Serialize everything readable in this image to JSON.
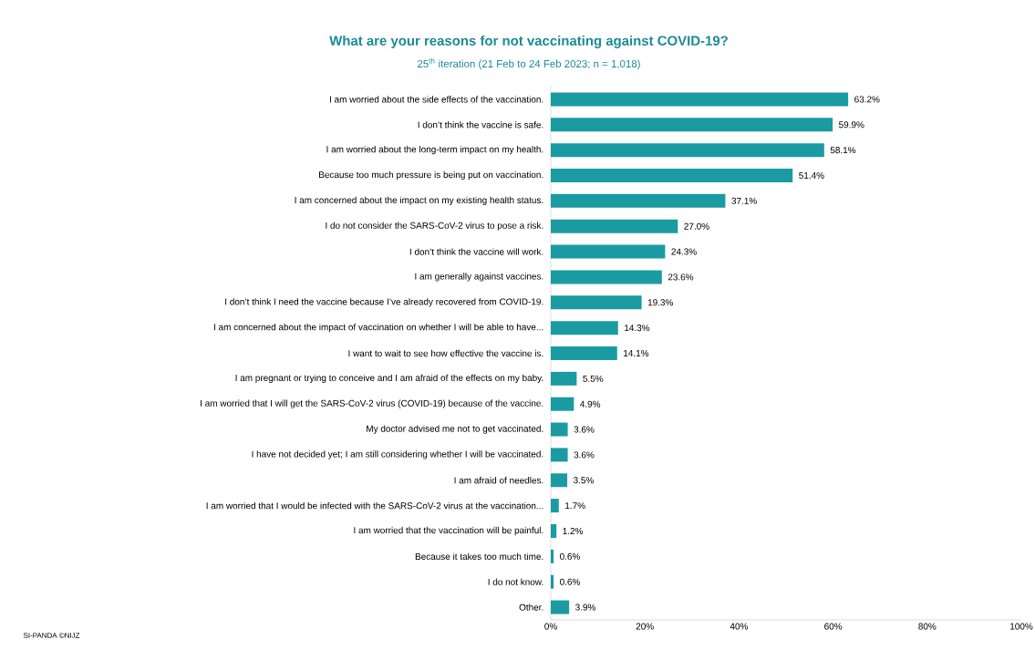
{
  "chart_data": {
    "type": "bar",
    "orientation": "horizontal",
    "title": "What are your reasons for not vaccinating against COVID-19?",
    "subtitle": "25$^{th}$ iteration (21 Feb to 24 Feb 2023; n = 1,018)",
    "categories": [
      "I am worried about the side effects of the vaccination.",
      "I don’t think the vaccine is safe.",
      "I am worried about the long-term impact on my health.",
      "Because too much pressure is being put on vaccination.",
      "I am concerned about the impact on my existing health status.",
      "I do not consider the SARS-CoV-2 virus to pose a risk.",
      "I don’t think the vaccine will work.",
      "I am generally against vaccines.",
      "I don’t think I need the vaccine because I’ve already recovered from COVID-19.",
      "I am concerned about the impact of vaccination on whether I will be able to have...",
      "I want to wait to see how effective the vaccine is.",
      "I am pregnant or trying to conceive and I am afraid of the effects on my baby.",
      "I am worried that I will get the SARS-CoV-2 virus (COVID-19) because of the vaccine.",
      "My doctor advised me not to get vaccinated.",
      "I have not decided yet; I am still considering whether I will be vaccinated.",
      "I am afraid of needles.",
      "I am worried that I would be infected with the SARS-CoV-2 virus at the vaccination...",
      "I am worried that the vaccination will be painful.",
      "Because it takes too much time.",
      "I do not know.",
      "Other."
    ],
    "values": [
      63.2,
      59.9,
      58.1,
      51.4,
      37.1,
      27.0,
      24.3,
      23.6,
      19.3,
      14.3,
      14.1,
      5.5,
      4.9,
      3.6,
      3.6,
      3.5,
      1.7,
      1.2,
      0.6,
      0.6,
      3.9
    ],
    "value_labels": [
      "63.2%",
      "59.9%",
      "58.1%",
      "51.4%",
      "37.1%",
      "27.0%",
      "24.3%",
      "23.6%",
      "19.3%",
      "14.3%",
      "14.1%",
      "5.5%",
      "4.9%",
      "3.6%",
      "3.6%",
      "3.5%",
      "1.7%",
      "1.2%",
      "0.6%",
      "0.6%",
      "3.9%"
    ],
    "color": "#1a9ba1",
    "xlim": [
      0,
      100
    ],
    "xticks": [
      {
        "value": 0,
        "label": "0%"
      },
      {
        "value": 20,
        "label": "20%"
      },
      {
        "value": 40,
        "label": "40%"
      },
      {
        "value": 60,
        "label": "60%"
      },
      {
        "value": 80,
        "label": "80%"
      },
      {
        "value": 100,
        "label": "100%"
      }
    ],
    "annotations": [
      "SI-PANDA ©NIJZ"
    ]
  }
}
